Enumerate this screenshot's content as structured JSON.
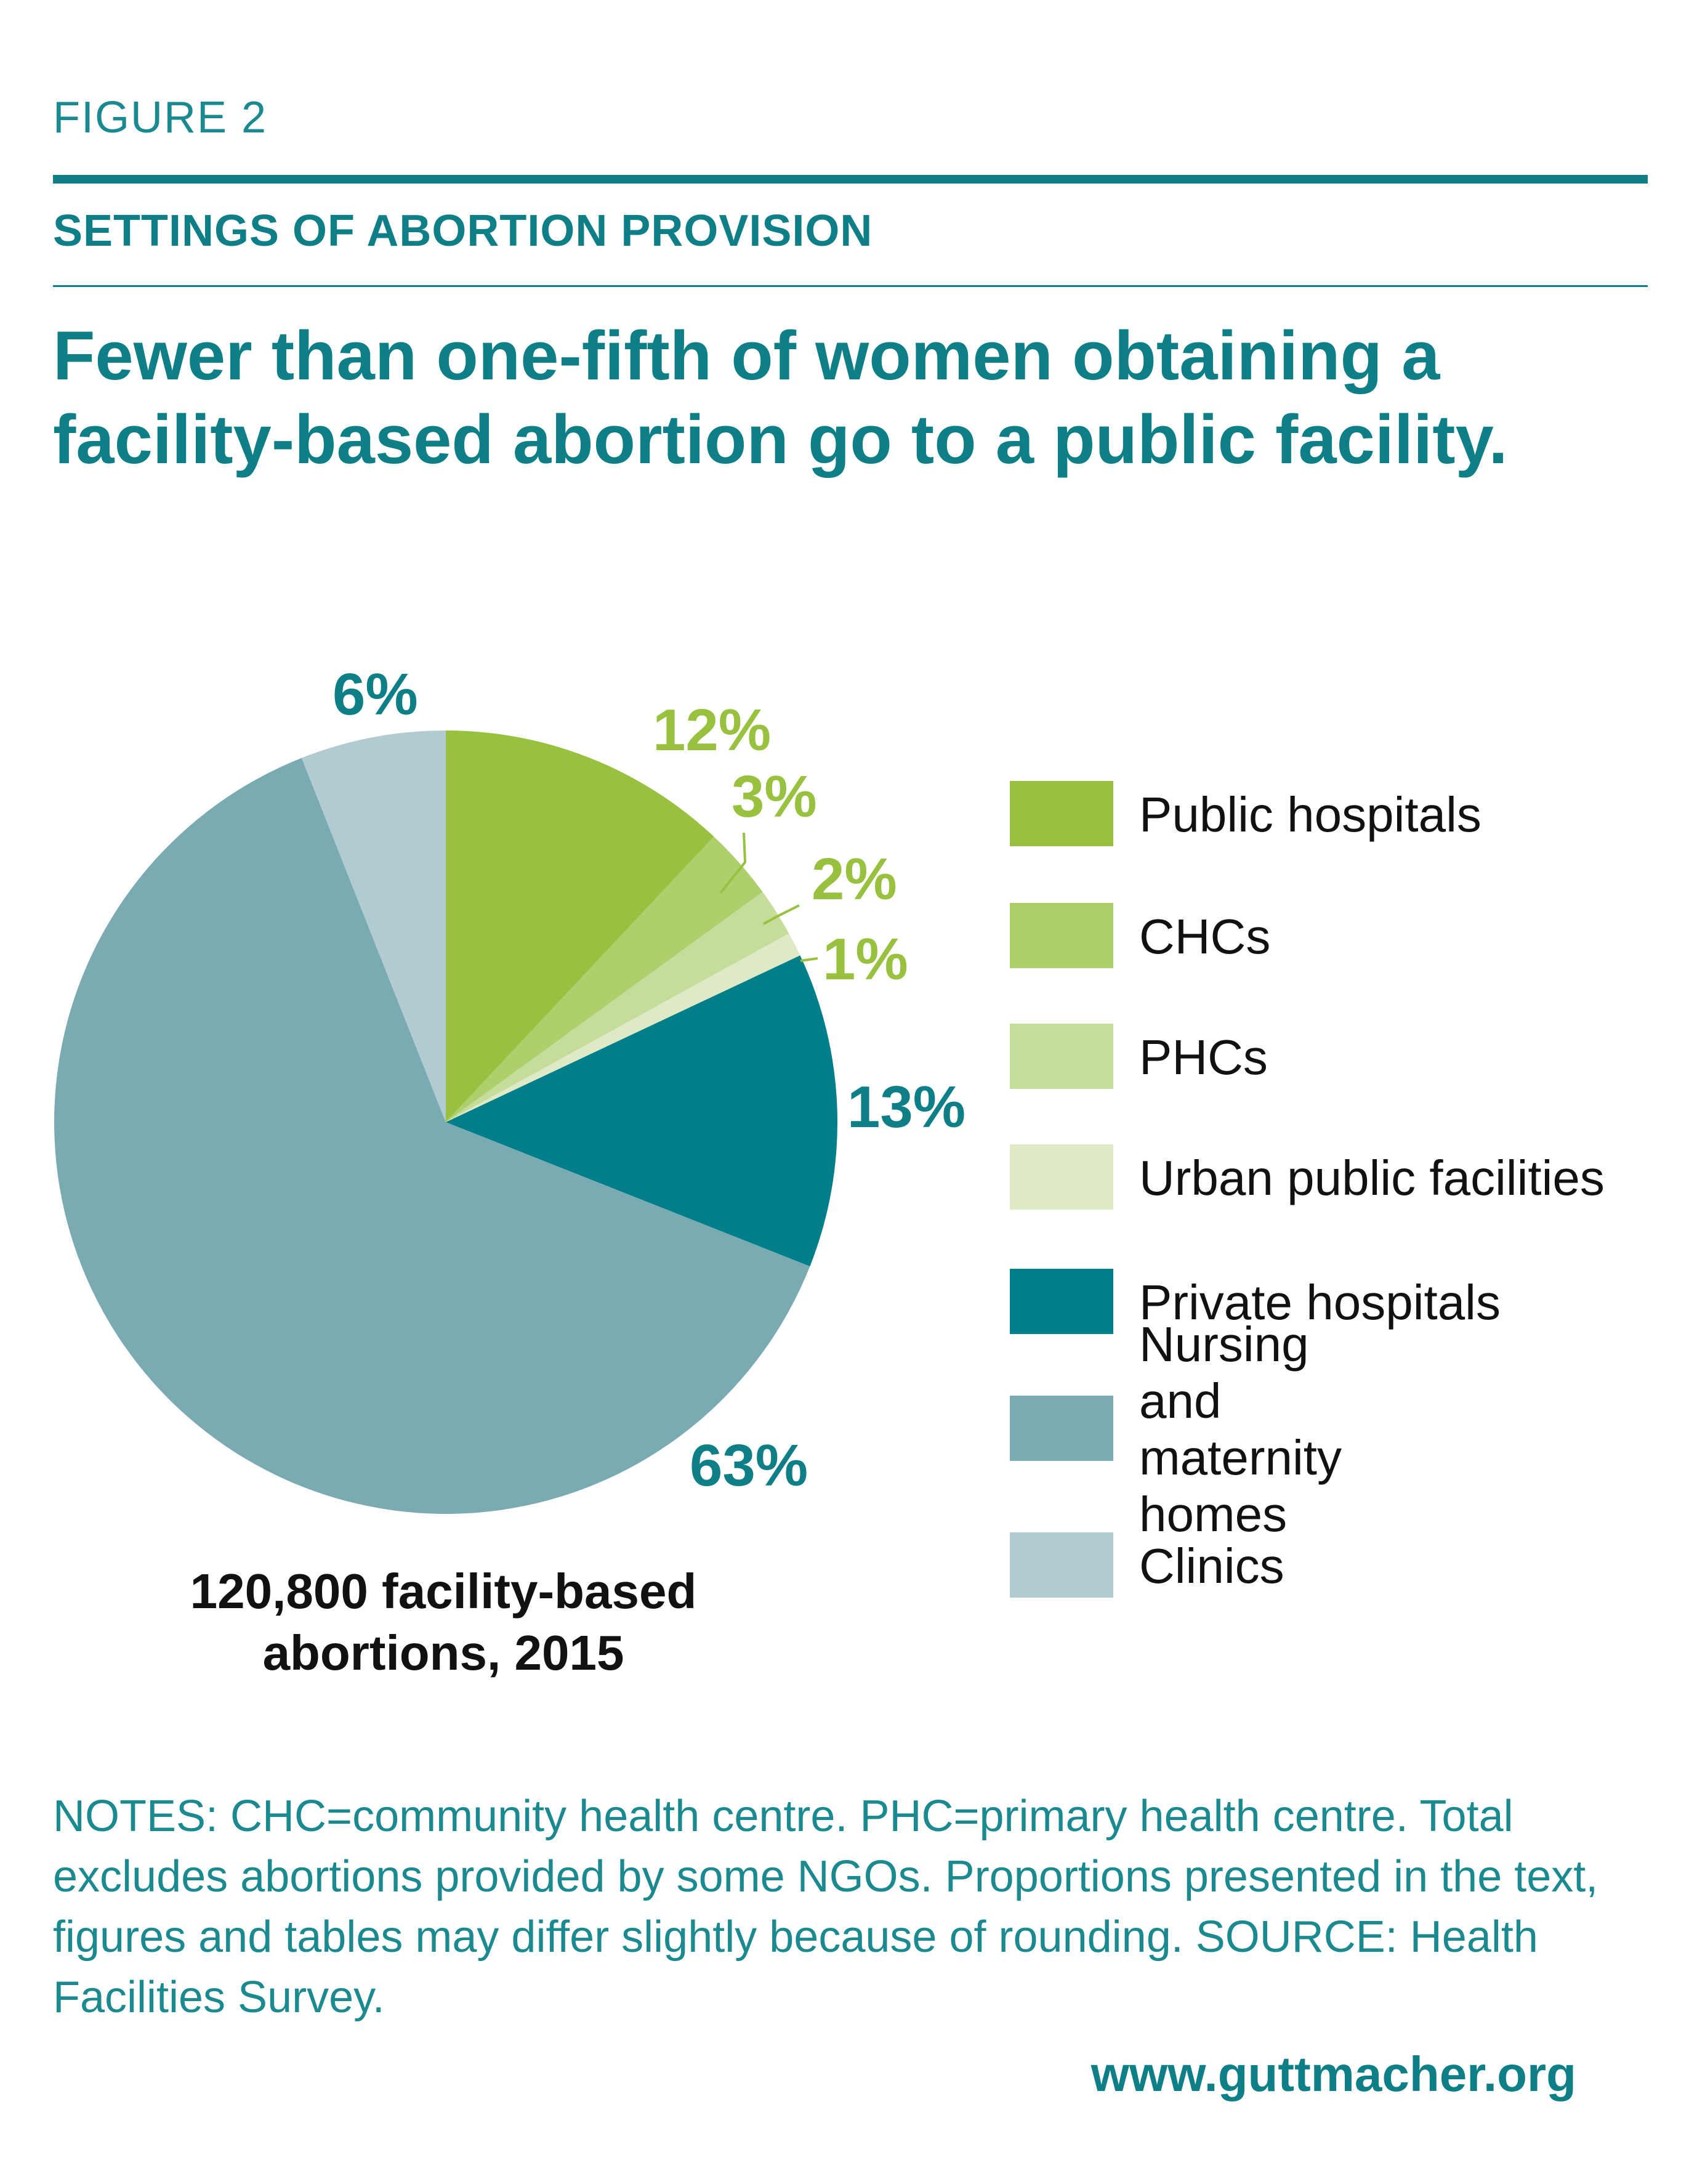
{
  "figure_label": "FIGURE 2",
  "section_title": "SETTINGS OF ABORTION PROVISION",
  "headline": "Fewer than one-fifth of women obtaining a facility-based abortion go to a public facility.",
  "caption": {
    "line1": "120,800 facility-based",
    "line2": "abortions, 2015"
  },
  "notes": "NOTES: CHC=community health centre. PHC=primary health centre. Total excludes abortions provided by some NGOs. Proportions presented in the text, figures and tables may differ slightly because of rounding. SOURCE: Health Facilities Survey.",
  "website": "www.guttmacher.org",
  "legend": {
    "items": [
      {
        "label": "Public hospitals",
        "color": "#98c140"
      },
      {
        "label": "CHCs",
        "color": "#afcf6c"
      },
      {
        "label": "PHCs",
        "color": "#c5dc9a"
      },
      {
        "label": "Urban public facilities",
        "color": "#dee9c6"
      },
      {
        "label": "Private hospitals",
        "color": "#007e89"
      },
      {
        "label": "Nursing and\nmaternity homes",
        "color": "#7aabb3"
      },
      {
        "label": "Clinics",
        "color": "#b2cbd1"
      }
    ]
  },
  "chart_data": {
    "type": "pie",
    "title": "",
    "total_note": "120,800 facility-based abortions, 2015",
    "slices": [
      {
        "name": "Public hospitals",
        "value": 12,
        "label": "12%",
        "color": "#98c140",
        "label_color": "#98c140"
      },
      {
        "name": "CHCs",
        "value": 3,
        "label": "3%",
        "color": "#afcf6c",
        "label_color": "#98c140"
      },
      {
        "name": "PHCs",
        "value": 2,
        "label": "2%",
        "color": "#c5dc9a",
        "label_color": "#98c140"
      },
      {
        "name": "Urban public facilities",
        "value": 1,
        "label": "1%",
        "color": "#dee9c6",
        "label_color": "#98c140"
      },
      {
        "name": "Private hospitals",
        "value": 13,
        "label": "13%",
        "color": "#007e89",
        "label_color": "#0e7f86"
      },
      {
        "name": "Nursing and maternity homes",
        "value": 63,
        "label": "63%",
        "color": "#7aabb3",
        "label_color": "#0e7f86"
      },
      {
        "name": "Clinics",
        "value": 6,
        "label": "6%",
        "color": "#b2cbd1",
        "label_color": "#0e7f86"
      }
    ],
    "start_angle": "12 o'clock",
    "direction": "clockwise",
    "legend_position": "right"
  }
}
